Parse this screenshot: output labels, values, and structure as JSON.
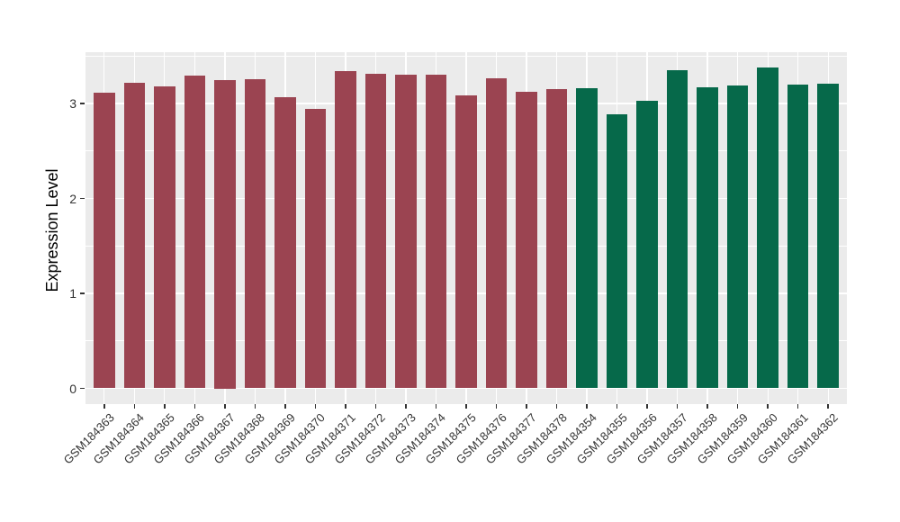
{
  "chart_data": {
    "type": "bar",
    "title": "",
    "xlabel": "",
    "ylabel": "Expression Level",
    "ylim": [
      -0.17,
      3.54
    ],
    "yticks": [
      0,
      1,
      2,
      3
    ],
    "yticks_minor": [
      0.5,
      1.5,
      2.5,
      3.5
    ],
    "grid": "on",
    "legend": "none",
    "categories": [
      "GSM184363",
      "GSM184364",
      "GSM184365",
      "GSM184366",
      "GSM184367",
      "GSM184368",
      "GSM184369",
      "GSM184370",
      "GSM184371",
      "GSM184372",
      "GSM184373",
      "GSM184374",
      "GSM184375",
      "GSM184376",
      "GSM184377",
      "GSM184378",
      "GSM184354",
      "GSM184355",
      "GSM184356",
      "GSM184357",
      "GSM184358",
      "GSM184359",
      "GSM184360",
      "GSM184361",
      "GSM184362"
    ],
    "values": [
      3.11,
      3.22,
      3.18,
      3.29,
      3.25,
      3.26,
      3.07,
      2.94,
      3.34,
      3.31,
      3.3,
      3.3,
      3.09,
      3.27,
      3.12,
      3.15,
      3.16,
      2.89,
      3.03,
      3.35,
      3.17,
      3.19,
      3.38,
      3.2,
      3.21
    ],
    "bar_groups": [
      "group1",
      "group1",
      "group1",
      "group1",
      "group1",
      "group1",
      "group1",
      "group1",
      "group1",
      "group1",
      "group1",
      "group1",
      "group1",
      "group1",
      "group1",
      "group1",
      "group2",
      "group2",
      "group2",
      "group2",
      "group2",
      "group2",
      "group2",
      "group2",
      "group2"
    ],
    "group_colors": {
      "group1": "#9B4451",
      "group2": "#06694A"
    },
    "colors": {
      "panel_bg": "#EBEBEB",
      "grid": "#FFFFFF",
      "tick_text": "#333333",
      "tick_mark": "#333333",
      "axis_title": "#000000"
    }
  }
}
